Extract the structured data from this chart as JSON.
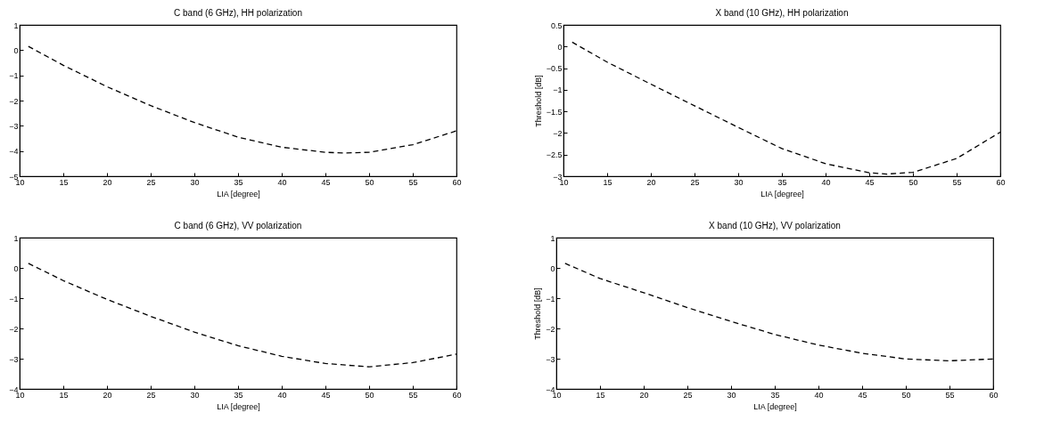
{
  "chart_data": [
    {
      "type": "line",
      "title": "C band (6 GHz), HH polarization",
      "xlabel": "LIA [degree]",
      "x": [
        11,
        15,
        20,
        25,
        30,
        35,
        40,
        45,
        47,
        50,
        55,
        60
      ],
      "series": [
        {
          "color": "#000000",
          "values": [
            0.15,
            -0.6,
            -1.45,
            -2.2,
            -2.87,
            -3.45,
            -3.85,
            -4.05,
            -4.08,
            -4.05,
            -3.75,
            -3.2
          ]
        }
      ],
      "xlim": [
        10,
        60
      ],
      "xticks": [
        10,
        15,
        20,
        25,
        30,
        35,
        40,
        45,
        50,
        55,
        60
      ],
      "ylim": [
        -5,
        1
      ],
      "yticks": [
        -5,
        -4,
        -3,
        -2,
        -1,
        0,
        1
      ],
      "line_style": "dashed",
      "grid": false
    },
    {
      "type": "line",
      "title": "X band (10 GHz), HH polarization",
      "xlabel": "LIA [degree]",
      "ylabel": "Threshold [dB]",
      "x": [
        11,
        15,
        20,
        25,
        30,
        35,
        40,
        45,
        47,
        50,
        55,
        60
      ],
      "series": [
        {
          "color": "#000000",
          "values": [
            0.1,
            -0.36,
            -0.87,
            -1.37,
            -1.87,
            -2.36,
            -2.71,
            -2.92,
            -2.95,
            -2.91,
            -2.59,
            -1.98
          ]
        }
      ],
      "xlim": [
        10,
        60
      ],
      "xticks": [
        10,
        15,
        20,
        25,
        30,
        35,
        40,
        45,
        50,
        55,
        60
      ],
      "ylim": [
        -3,
        0.5
      ],
      "yticks": [
        -3,
        -2.5,
        -2,
        -1.5,
        -1,
        -0.5,
        0,
        0.5
      ],
      "line_style": "dashed",
      "grid": false
    },
    {
      "type": "line",
      "title": "C band (6 GHz), VV polarization",
      "xlabel": "LIA [degree]",
      "x": [
        11,
        15,
        20,
        25,
        30,
        35,
        40,
        45,
        50,
        55,
        60
      ],
      "series": [
        {
          "color": "#000000",
          "values": [
            0.15,
            -0.42,
            -1.04,
            -1.6,
            -2.12,
            -2.57,
            -2.92,
            -3.16,
            -3.27,
            -3.13,
            -2.85
          ]
        }
      ],
      "xlim": [
        10,
        60
      ],
      "xticks": [
        10,
        15,
        20,
        25,
        30,
        35,
        40,
        45,
        50,
        55,
        60
      ],
      "ylim": [
        -4,
        1
      ],
      "yticks": [
        -4,
        -3,
        -2,
        -1,
        0,
        1
      ],
      "line_style": "dashed",
      "grid": false
    },
    {
      "type": "line",
      "title": "X band (10 GHz), VV polarization",
      "xlabel": "LIA [degree]",
      "ylabel": "Threshold [dB]",
      "x": [
        11,
        15,
        20,
        25,
        30,
        35,
        40,
        45,
        50,
        55,
        60
      ],
      "series": [
        {
          "color": "#000000",
          "values": [
            0.15,
            -0.35,
            -0.82,
            -1.31,
            -1.77,
            -2.2,
            -2.55,
            -2.82,
            -3.01,
            -3.07,
            -3.01
          ]
        }
      ],
      "xlim": [
        10,
        60
      ],
      "xticks": [
        10,
        15,
        20,
        25,
        30,
        35,
        40,
        45,
        50,
        55,
        60
      ],
      "ylim": [
        -4,
        1
      ],
      "yticks": [
        -4,
        -3,
        -2,
        -1,
        0,
        1
      ],
      "line_style": "dashed",
      "grid": false
    }
  ]
}
